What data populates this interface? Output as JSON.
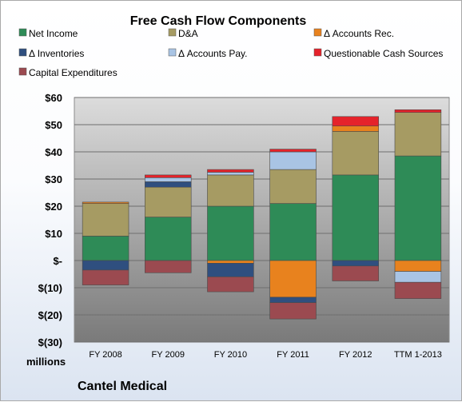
{
  "chart_data": {
    "type": "bar",
    "stacked": true,
    "title": "Free Cash Flow Components",
    "unit_label": "millions",
    "footer": "Cantel Medical",
    "categories": [
      "FY 2008",
      "FY 2009",
      "FY 2010",
      "FY 2011",
      "FY 2012",
      "TTM 1-2013"
    ],
    "ylim": [
      -30,
      60
    ],
    "y_ticks": [
      60,
      50,
      40,
      30,
      20,
      10,
      0,
      -10,
      -20,
      -30
    ],
    "y_tick_labels": [
      "$60",
      "$50",
      "$40",
      "$30",
      "$20",
      "$10",
      "$-",
      "$(10)",
      "$(20)",
      "$(30)"
    ],
    "grid": true,
    "legend_position": "top",
    "series": [
      {
        "name": "Net Income",
        "color": "#2e8b57",
        "values": [
          9,
          16,
          20,
          21,
          31.5,
          38.5
        ]
      },
      {
        "name": "D&A",
        "color": "#a69b63",
        "values": [
          12,
          11,
          11.5,
          12.5,
          16,
          16
        ]
      },
      {
        "name": "Δ Accounts Rec.",
        "color": "#e8821e",
        "values": [
          0.5,
          0,
          -1,
          -13.5,
          2,
          -4
        ]
      },
      {
        "name": "Δ Inventories",
        "color": "#2f4f7f",
        "values": [
          -3.5,
          2,
          -5,
          -2,
          -2,
          0
        ]
      },
      {
        "name": "Δ Accounts Pay.",
        "color": "#a9c4e4",
        "values": [
          0,
          1.5,
          1,
          6.5,
          0,
          -4
        ]
      },
      {
        "name": "Questionable Cash Sources",
        "color": "#e5232b",
        "values": [
          0,
          1,
          1,
          1,
          3.5,
          1
        ]
      },
      {
        "name": "Capital Expenditures",
        "color": "#9b4a50",
        "values": [
          -5.5,
          -4.5,
          -5.5,
          -6,
          -5.5,
          -6
        ]
      }
    ]
  }
}
